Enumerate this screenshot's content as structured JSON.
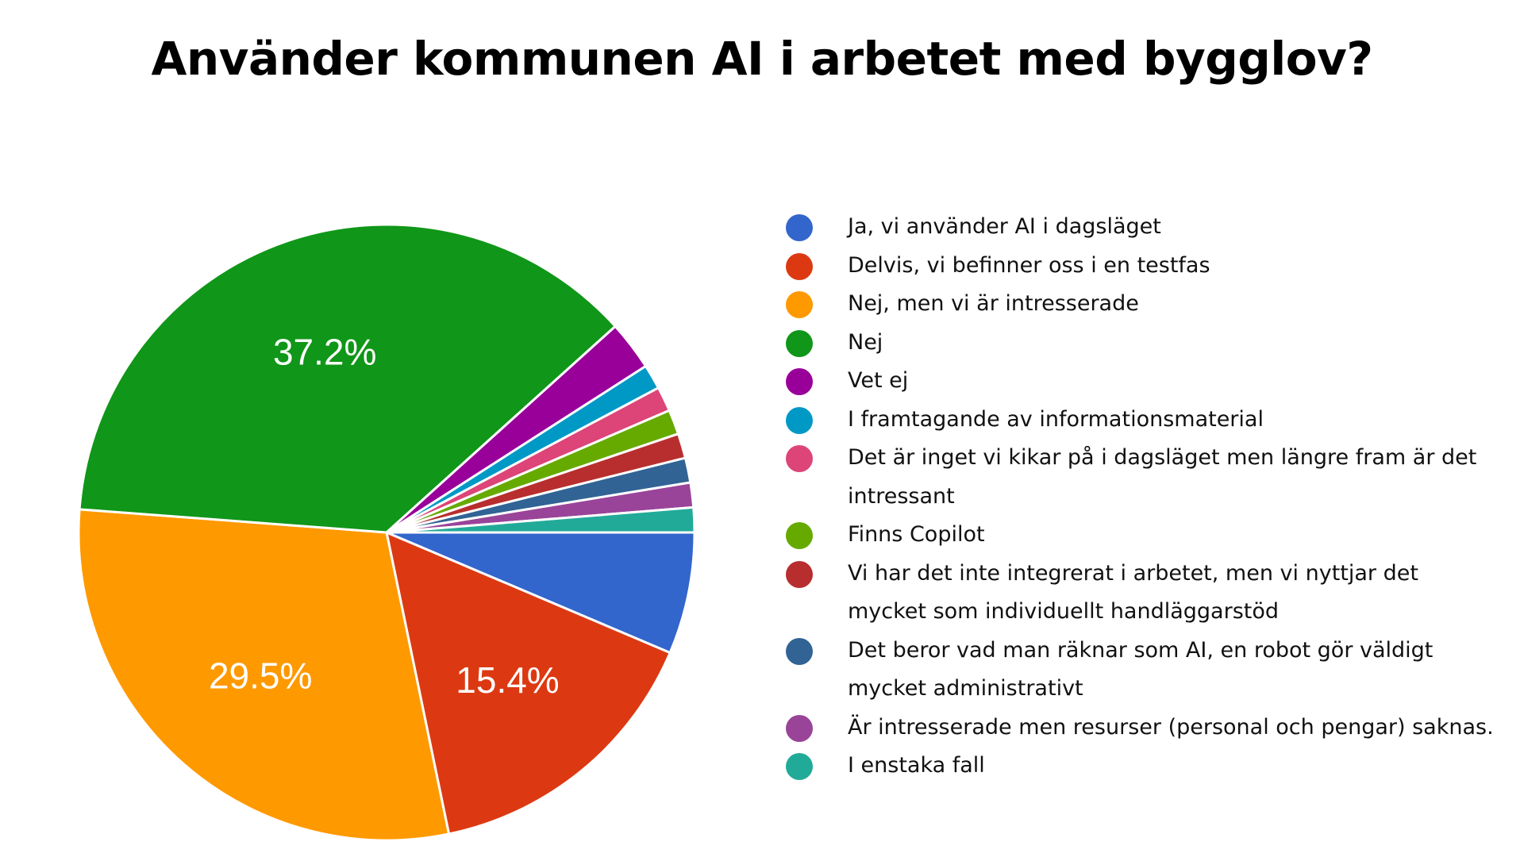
{
  "chart_data": {
    "type": "pie",
    "title": "Använder kommunen AI i arbetet med bygglov?",
    "legend_position": "right",
    "start_direction": "3 o'clock, clockwise",
    "slices": [
      {
        "label": "Ja, vi använder AI i dagsläget",
        "value": 6.4,
        "color": "#3366cc",
        "data_label": ""
      },
      {
        "label": "Delvis, vi befinner oss i en testfas",
        "value": 15.4,
        "color": "#dc3912",
        "data_label": "15.4%"
      },
      {
        "label": "Nej, men vi är intresserade",
        "value": 29.5,
        "color": "#ff9900",
        "data_label": "29.5%"
      },
      {
        "label": "Nej",
        "value": 37.2,
        "color": "#109618",
        "data_label": "37.2%"
      },
      {
        "label": "Vet ej",
        "value": 2.6,
        "color": "#990099",
        "data_label": ""
      },
      {
        "label": "I framtagande av informationsmaterial",
        "value": 1.3,
        "color": "#0099c6",
        "data_label": ""
      },
      {
        "label": "Det är inget vi kikar på i dagsläget men längre fram är det intressant",
        "value": 1.3,
        "color": "#dd4477",
        "data_label": ""
      },
      {
        "label": "Finns Copilot",
        "value": 1.3,
        "color": "#66aa00",
        "data_label": ""
      },
      {
        "label": "Vi har det inte integrerat i arbetet, men vi nyttjar det mycket som individuellt handläggarstöd",
        "value": 1.3,
        "color": "#b82e2e",
        "data_label": ""
      },
      {
        "label": "Det beror vad man räknar som AI, en robot gör väldigt mycket administrativt",
        "value": 1.3,
        "color": "#316395",
        "data_label": ""
      },
      {
        "label": "Är intresserade men resurser (personal och pengar) saknas.",
        "value": 1.3,
        "color": "#994499",
        "data_label": ""
      },
      {
        "label": "I enstaka fall",
        "value": 1.3,
        "color": "#22aa99",
        "data_label": ""
      }
    ]
  }
}
